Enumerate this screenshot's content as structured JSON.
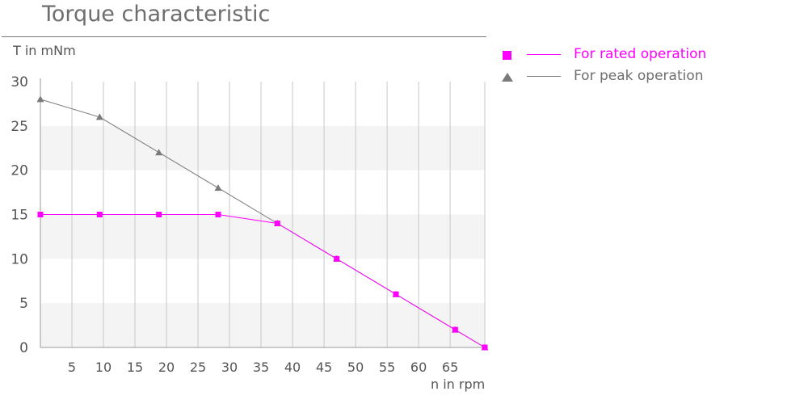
{
  "chart_data": {
    "type": "line",
    "title": "Torque characteristic",
    "xlabel": "n in rpm",
    "ylabel": "T in mNm",
    "xlim": [
      0,
      70.5
    ],
    "ylim": [
      0,
      30
    ],
    "xticks": [
      5,
      10,
      15,
      20,
      25,
      30,
      35,
      40,
      45,
      50,
      55,
      60,
      65
    ],
    "yticks": [
      0,
      5,
      10,
      15,
      20,
      25,
      30
    ],
    "grid": true,
    "legend_position": "right",
    "series": [
      {
        "name": "For peak operation",
        "color": "#7a7a7a",
        "marker": "triangle",
        "points": [
          [
            0,
            28
          ],
          [
            9.4,
            26
          ],
          [
            18.8,
            22
          ],
          [
            28.2,
            18
          ],
          [
            37.6,
            14
          ],
          [
            47,
            10
          ],
          [
            56.4,
            6
          ],
          [
            65.8,
            2
          ],
          [
            70.5,
            0
          ]
        ]
      },
      {
        "name": "For rated operation",
        "color": "#ff00ff",
        "marker": "square",
        "points": [
          [
            0,
            15
          ],
          [
            9.4,
            15
          ],
          [
            18.8,
            15
          ],
          [
            28.2,
            15
          ],
          [
            37.6,
            14
          ],
          [
            47,
            10
          ],
          [
            56.4,
            6
          ],
          [
            65.8,
            2
          ],
          [
            70.5,
            0
          ]
        ]
      }
    ],
    "legend": [
      {
        "label": "For rated operation",
        "color": "#ff00ff",
        "marker": "square"
      },
      {
        "label": "For peak operation",
        "color": "#7a7a7a",
        "marker": "triangle"
      }
    ]
  }
}
